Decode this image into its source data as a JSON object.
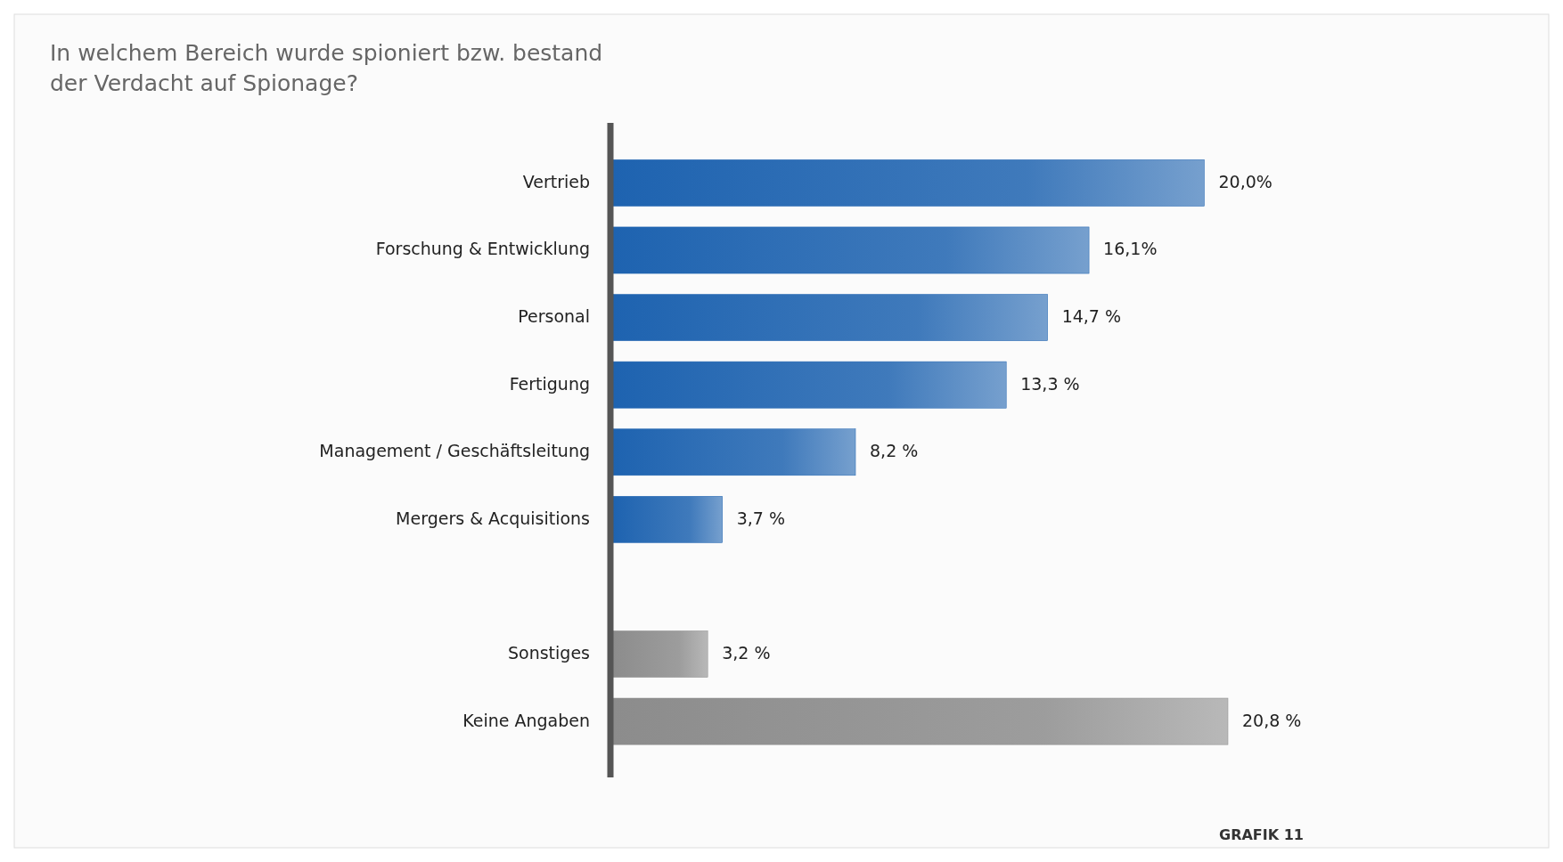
{
  "chart_data": {
    "type": "bar",
    "orientation": "horizontal",
    "title": "In welchem Bereich wurde spioniert bzw. bestand der Verdacht auf Spionage?",
    "categories": [
      "Vertrieb",
      "Forschung & Entwicklung",
      "Personal",
      "Fertigung",
      "Management / Geschäftsleitung",
      "Mergers & Acquisitions",
      null,
      "Sonstiges",
      "Keine Angaben"
    ],
    "values": [
      20.0,
      16.1,
      14.7,
      13.3,
      8.2,
      3.7,
      null,
      3.2,
      20.8
    ],
    "colors": [
      "#1e63b0",
      "#1e63b0",
      "#1e63b0",
      "#1e63b0",
      "#1e63b0",
      "#1e63b0",
      "#1e63b0",
      "#8c8c8c",
      "#8c8c8c"
    ],
    "value_labels": [
      "20,0%",
      "16,1%",
      "14,7 %",
      "13,3 %",
      "8,2 %",
      "3,7 %",
      null,
      "3,2 %",
      "20,8 %"
    ],
    "annotations": [
      "GRAFIK 11"
    ]
  }
}
